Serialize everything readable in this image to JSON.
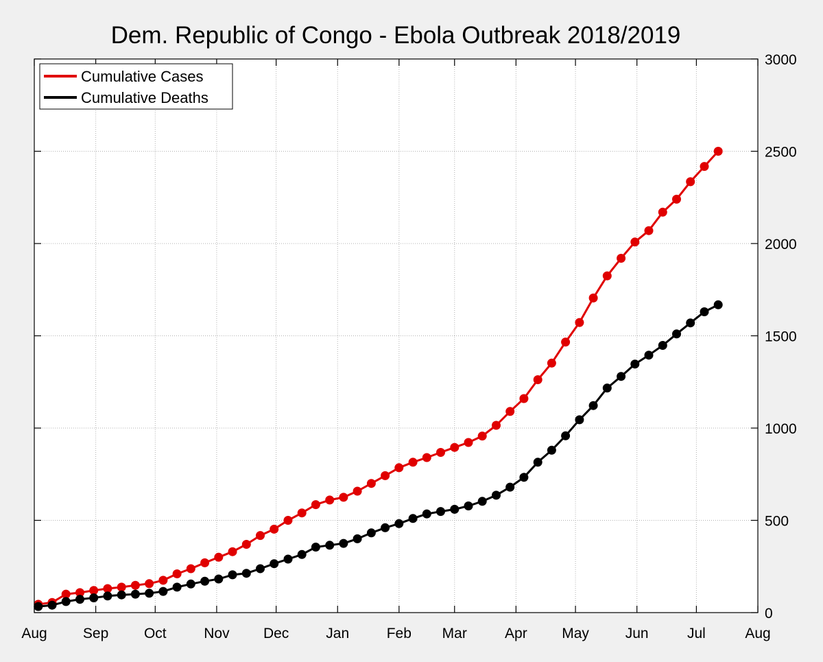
{
  "chart_data": {
    "type": "line",
    "title": "Dem. Republic of Congo - Ebola Outbreak 2018/2019",
    "xlabel": "",
    "ylabel": "",
    "x_axis": {
      "type": "date",
      "range": [
        "2018-08-01",
        "2019-08-01"
      ],
      "ticks": [
        "2018-08-01",
        "2018-09-01",
        "2018-10-01",
        "2018-11-01",
        "2018-12-01",
        "2019-01-01",
        "2019-02-01",
        "2019-03-01",
        "2019-04-01",
        "2019-05-01",
        "2019-06-01",
        "2019-07-01",
        "2019-08-01"
      ],
      "tick_labels": [
        "Aug",
        "Sep",
        "Oct",
        "Nov",
        "Dec",
        "Jan",
        "Feb",
        "Mar",
        "Apr",
        "May",
        "Jun",
        "Jul",
        "Aug"
      ]
    },
    "y_axis": {
      "side": "right",
      "range": [
        0,
        3000
      ],
      "ticks": [
        0,
        500,
        1000,
        1500,
        2000,
        2500,
        3000
      ],
      "tick_labels": [
        "0",
        "500",
        "1000",
        "1500",
        "2000",
        "2500",
        "3000"
      ]
    },
    "grid": true,
    "legend": {
      "position": "top-left"
    },
    "series": [
      {
        "name": "Cumulative Cases",
        "color": "#e00000",
        "points": [
          [
            "2018-08-03",
            45
          ],
          [
            "2018-08-10",
            55
          ],
          [
            "2018-08-17",
            100
          ],
          [
            "2018-08-24",
            108
          ],
          [
            "2018-08-31",
            120
          ],
          [
            "2018-09-07",
            130
          ],
          [
            "2018-09-14",
            138
          ],
          [
            "2018-09-21",
            148
          ],
          [
            "2018-09-28",
            157
          ],
          [
            "2018-10-05",
            175
          ],
          [
            "2018-10-12",
            210
          ],
          [
            "2018-10-19",
            238
          ],
          [
            "2018-10-26",
            270
          ],
          [
            "2018-11-02",
            300
          ],
          [
            "2018-11-09",
            330
          ],
          [
            "2018-11-16",
            370
          ],
          [
            "2018-11-23",
            418
          ],
          [
            "2018-11-30",
            452
          ],
          [
            "2018-12-07",
            500
          ],
          [
            "2018-12-14",
            540
          ],
          [
            "2018-12-21",
            585
          ],
          [
            "2018-12-28",
            610
          ],
          [
            "2019-01-04",
            625
          ],
          [
            "2019-01-11",
            658
          ],
          [
            "2019-01-18",
            700
          ],
          [
            "2019-01-25",
            742
          ],
          [
            "2019-02-01",
            785
          ],
          [
            "2019-02-08",
            815
          ],
          [
            "2019-02-15",
            840
          ],
          [
            "2019-02-22",
            868
          ],
          [
            "2019-03-01",
            895
          ],
          [
            "2019-03-08",
            922
          ],
          [
            "2019-03-15",
            957
          ],
          [
            "2019-03-22",
            1015
          ],
          [
            "2019-03-29",
            1090
          ],
          [
            "2019-04-05",
            1160
          ],
          [
            "2019-04-12",
            1262
          ],
          [
            "2019-04-19",
            1352
          ],
          [
            "2019-04-26",
            1466
          ],
          [
            "2019-05-03",
            1572
          ],
          [
            "2019-05-10",
            1705
          ],
          [
            "2019-05-17",
            1825
          ],
          [
            "2019-05-24",
            1920
          ],
          [
            "2019-05-31",
            2008
          ],
          [
            "2019-06-07",
            2070
          ],
          [
            "2019-06-14",
            2170
          ],
          [
            "2019-06-21",
            2240
          ],
          [
            "2019-06-28",
            2335
          ],
          [
            "2019-07-05",
            2418
          ],
          [
            "2019-07-12",
            2500
          ]
        ]
      },
      {
        "name": "Cumulative Deaths",
        "color": "#000000",
        "points": [
          [
            "2018-08-03",
            33
          ],
          [
            "2018-08-10",
            40
          ],
          [
            "2018-08-17",
            60
          ],
          [
            "2018-08-24",
            72
          ],
          [
            "2018-08-31",
            80
          ],
          [
            "2018-09-07",
            90
          ],
          [
            "2018-09-14",
            96
          ],
          [
            "2018-09-21",
            100
          ],
          [
            "2018-09-28",
            105
          ],
          [
            "2018-10-05",
            115
          ],
          [
            "2018-10-12",
            138
          ],
          [
            "2018-10-19",
            155
          ],
          [
            "2018-10-26",
            170
          ],
          [
            "2018-11-02",
            182
          ],
          [
            "2018-11-09",
            205
          ],
          [
            "2018-11-16",
            213
          ],
          [
            "2018-11-23",
            238
          ],
          [
            "2018-11-30",
            265
          ],
          [
            "2018-12-07",
            290
          ],
          [
            "2018-12-14",
            315
          ],
          [
            "2018-12-21",
            355
          ],
          [
            "2018-12-28",
            365
          ],
          [
            "2019-01-04",
            375
          ],
          [
            "2019-01-11",
            400
          ],
          [
            "2019-01-18",
            432
          ],
          [
            "2019-01-25",
            460
          ],
          [
            "2019-02-01",
            482
          ],
          [
            "2019-02-08",
            510
          ],
          [
            "2019-02-15",
            535
          ],
          [
            "2019-02-22",
            548
          ],
          [
            "2019-03-01",
            560
          ],
          [
            "2019-03-08",
            578
          ],
          [
            "2019-03-15",
            603
          ],
          [
            "2019-03-22",
            636
          ],
          [
            "2019-03-29",
            680
          ],
          [
            "2019-04-05",
            733
          ],
          [
            "2019-04-12",
            815
          ],
          [
            "2019-04-19",
            880
          ],
          [
            "2019-04-26",
            958
          ],
          [
            "2019-05-03",
            1045
          ],
          [
            "2019-05-10",
            1122
          ],
          [
            "2019-05-17",
            1217
          ],
          [
            "2019-05-24",
            1280
          ],
          [
            "2019-05-31",
            1347
          ],
          [
            "2019-06-07",
            1395
          ],
          [
            "2019-06-14",
            1448
          ],
          [
            "2019-06-21",
            1510
          ],
          [
            "2019-06-28",
            1570
          ],
          [
            "2019-07-05",
            1630
          ],
          [
            "2019-07-12",
            1668
          ]
        ]
      }
    ]
  }
}
